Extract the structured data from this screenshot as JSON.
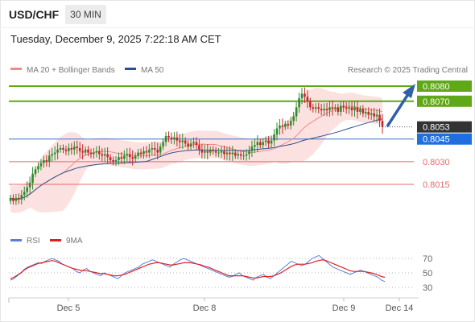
{
  "header": {
    "pair": "USD/CHF",
    "timeframe": "30 MIN",
    "datetime": "Tuesday, December 9, 2025 7:22:18 AM CET"
  },
  "legend": {
    "ma20": "MA 20 + Bollinger Bands",
    "ma50": "MA 50",
    "rsi": "RSI",
    "rsi_ma": "9MA"
  },
  "source": "Research © 2025 Trading Central",
  "colors": {
    "green": "#5fa818",
    "blue_line": "#3a6fc4",
    "blue_tag": "#1f6fe0",
    "red": "#e86a6a",
    "dark_tag": "#333333",
    "band": "#fbd7d7",
    "bull": "#2e8b2e",
    "bear": "#c62828",
    "rsi": "#5b7fd6",
    "rsi_ma": "#e02020"
  },
  "chart_data": [
    {
      "type": "candlestick",
      "ylim": [
        0.8,
        0.8085
      ],
      "x_tick_labels": [
        "Dec 5",
        "Dec 8",
        "Dec 9",
        "Dec 14"
      ],
      "levels": [
        {
          "value": 0.808,
          "label": "0.8080",
          "style": "resistance"
        },
        {
          "value": 0.807,
          "label": "0.8070",
          "style": "resistance"
        },
        {
          "value": 0.8053,
          "label": "0.8053",
          "style": "last"
        },
        {
          "value": 0.8045,
          "label": "0.8045",
          "style": "pivot"
        },
        {
          "value": 0.803,
          "label": "0.8030",
          "style": "support"
        },
        {
          "value": 0.8015,
          "label": "0.8015",
          "style": "support"
        }
      ],
      "close": [
        0.8006,
        0.8004,
        0.8006,
        0.8005,
        0.8008,
        0.801,
        0.8013,
        0.8016,
        0.8022,
        0.8025,
        0.8027,
        0.8029,
        0.8031,
        0.803,
        0.8034,
        0.8035,
        0.8036,
        0.8038,
        0.8039,
        0.8038,
        0.8037,
        0.8039,
        0.8038,
        0.804,
        0.8039,
        0.8037,
        0.8036,
        0.8038,
        0.8036,
        0.8035,
        0.8036,
        0.8037,
        0.8035,
        0.8034,
        0.8035,
        0.8033,
        0.8031,
        0.803,
        0.8031,
        0.8033,
        0.8032,
        0.8034,
        0.8035,
        0.8033,
        0.8032,
        0.8034,
        0.8036,
        0.8035,
        0.8037,
        0.8036,
        0.8038,
        0.8039,
        0.8038,
        0.8036,
        0.804,
        0.8043,
        0.8047,
        0.8046,
        0.8045,
        0.8046,
        0.8044,
        0.8043,
        0.8044,
        0.8042,
        0.804,
        0.8042,
        0.8043,
        0.8041,
        0.8038,
        0.8036,
        0.8037,
        0.8036,
        0.8038,
        0.8037,
        0.8036,
        0.8036,
        0.8037,
        0.8035,
        0.8036,
        0.8035,
        0.8036,
        0.8034,
        0.8035,
        0.8034,
        0.8034,
        0.8035,
        0.8037,
        0.804,
        0.8041,
        0.8043,
        0.8041,
        0.8043,
        0.8044,
        0.8042,
        0.8044,
        0.8048,
        0.8052,
        0.8054,
        0.8053,
        0.8055,
        0.8054,
        0.8057,
        0.806,
        0.8066,
        0.8072,
        0.8075,
        0.8073,
        0.807,
        0.8066,
        0.8065,
        0.8066,
        0.8065,
        0.8064,
        0.8065,
        0.8064,
        0.8066,
        0.8065,
        0.8066,
        0.8063,
        0.8067,
        0.8066,
        0.8065,
        0.8066,
        0.8064,
        0.8066,
        0.8063,
        0.8065,
        0.8062,
        0.8063,
        0.8061,
        0.8062,
        0.806,
        0.8061,
        0.8057,
        0.8053
      ]
    },
    {
      "type": "line",
      "title": "RSI",
      "ylim": [
        20,
        80
      ],
      "y_tick_labels": [
        70,
        50,
        30
      ],
      "series": [
        {
          "name": "RSI",
          "values": [
            40,
            42,
            46,
            50,
            55,
            58,
            60,
            62,
            64,
            63,
            66,
            68,
            70,
            68,
            66,
            62,
            60,
            58,
            56,
            52,
            50,
            54,
            56,
            52,
            50,
            48,
            46,
            50,
            48,
            46,
            44,
            42,
            46,
            50,
            52,
            54,
            56,
            58,
            62,
            64,
            66,
            68,
            66,
            64,
            62,
            60,
            58,
            62,
            65,
            68,
            70,
            68,
            66,
            64,
            62,
            60,
            58,
            56,
            54,
            52,
            50,
            48,
            46,
            44,
            45,
            48,
            50,
            46,
            44,
            42,
            40,
            44,
            46,
            48,
            44,
            42,
            46,
            50,
            54,
            58,
            62,
            66,
            64,
            62,
            60,
            62,
            66,
            70,
            72,
            74,
            70,
            66,
            62,
            58,
            56,
            54,
            52,
            50,
            48,
            50,
            52,
            54,
            52,
            50,
            48,
            46,
            44,
            40,
            38
          ]
        },
        {
          "name": "9MA",
          "values": [
            42,
            44,
            47,
            50,
            54,
            57,
            59,
            61,
            63,
            64,
            65,
            66,
            67,
            66,
            64,
            62,
            60,
            58,
            56,
            55,
            54,
            53,
            53,
            52,
            51,
            50,
            49,
            49,
            48,
            47,
            46,
            46,
            47,
            48,
            50,
            52,
            54,
            56,
            58,
            60,
            62,
            63,
            64,
            64,
            63,
            62,
            61,
            61,
            62,
            63,
            64,
            64,
            64,
            63,
            62,
            61,
            59,
            58,
            56,
            54,
            52,
            50,
            48,
            46,
            46,
            46,
            46,
            46,
            45,
            44,
            43,
            43,
            44,
            45,
            45,
            45,
            46,
            48,
            50,
            53,
            56,
            59,
            61,
            62,
            62,
            62,
            63,
            64,
            66,
            67,
            68,
            67,
            65,
            63,
            61,
            59,
            57,
            55,
            53,
            52,
            52,
            52,
            52,
            51,
            50,
            49,
            47,
            45,
            44
          ]
        }
      ]
    }
  ]
}
